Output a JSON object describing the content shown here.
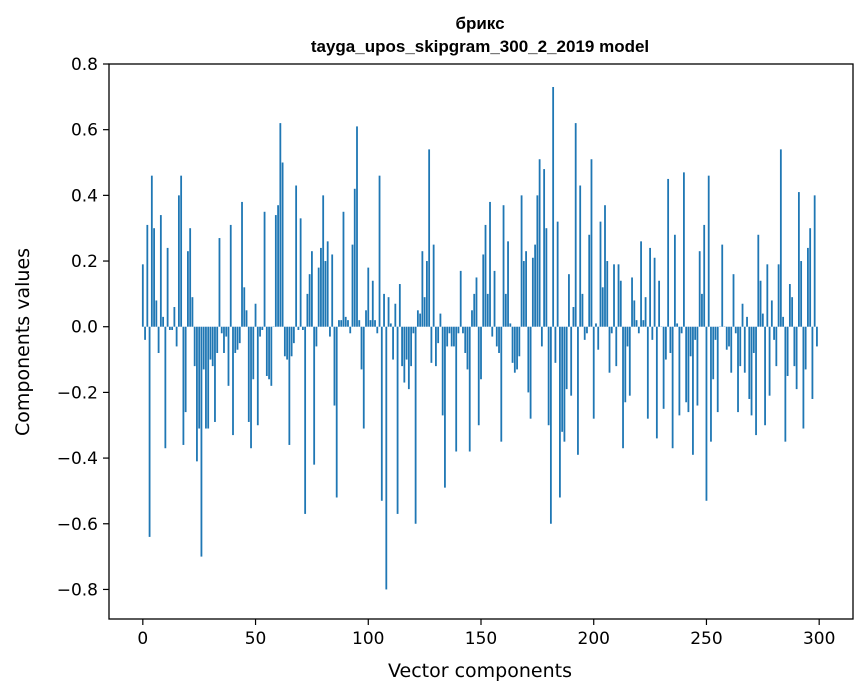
{
  "chart_data": {
    "type": "bar",
    "title": "брикс",
    "subtitle": "tayga_upos_skipgram_300_2_2019 model",
    "xlabel": "Vector components",
    "ylabel": "Components values",
    "xlim": [
      -15,
      315
    ],
    "ylim": [
      -0.89,
      0.8
    ],
    "xticks": [
      0,
      50,
      100,
      150,
      200,
      250,
      300
    ],
    "yticks": [
      0.8,
      0.6,
      0.4,
      0.2,
      0.0,
      -0.2,
      -0.4,
      -0.6,
      -0.8
    ],
    "ytick_labels": [
      "0.8",
      "0.6",
      "0.4",
      "0.2",
      "0.0",
      "−0.2",
      "−0.4",
      "−0.6",
      "−0.8"
    ],
    "bar_color": "#1f77b4",
    "values": [
      0.19,
      -0.04,
      0.31,
      -0.64,
      0.46,
      0.3,
      0.08,
      -0.08,
      0.34,
      0.03,
      -0.37,
      0.24,
      -0.01,
      -0.01,
      0.06,
      -0.06,
      0.4,
      0.46,
      -0.36,
      -0.26,
      0.23,
      0.3,
      0.09,
      -0.12,
      -0.41,
      -0.31,
      -0.7,
      -0.13,
      -0.31,
      -0.31,
      -0.1,
      -0.12,
      -0.29,
      -0.08,
      0.27,
      -0.02,
      -0.08,
      -0.03,
      -0.18,
      0.31,
      -0.33,
      -0.08,
      -0.07,
      -0.05,
      0.38,
      0.12,
      0.05,
      -0.29,
      -0.37,
      -0.16,
      0.07,
      -0.3,
      -0.03,
      -0.01,
      0.35,
      -0.15,
      -0.16,
      -0.18,
      0.0,
      0.34,
      0.37,
      0.62,
      0.5,
      -0.09,
      -0.1,
      -0.36,
      -0.09,
      -0.05,
      0.43,
      -0.01,
      0.33,
      -0.01,
      -0.57,
      0.1,
      0.16,
      0.23,
      -0.42,
      -0.06,
      0.18,
      0.24,
      0.4,
      0.2,
      0.26,
      -0.03,
      0.22,
      -0.24,
      -0.52,
      0.02,
      0.02,
      0.35,
      0.03,
      0.02,
      -0.02,
      0.25,
      0.42,
      0.61,
      0.02,
      -0.13,
      -0.31,
      0.05,
      0.18,
      0.02,
      0.14,
      0.02,
      -0.02,
      0.46,
      -0.53,
      0.1,
      -0.8,
      0.09,
      0.01,
      -0.1,
      0.07,
      -0.57,
      0.13,
      -0.12,
      -0.17,
      -0.1,
      -0.19,
      -0.12,
      -0.02,
      -0.6,
      0.05,
      0.04,
      0.23,
      0.09,
      0.2,
      0.54,
      -0.11,
      0.25,
      -0.12,
      -0.05,
      0.04,
      -0.27,
      -0.49,
      -0.06,
      -0.02,
      -0.06,
      -0.06,
      -0.38,
      -0.02,
      0.17,
      -0.02,
      -0.08,
      -0.13,
      -0.38,
      0.05,
      0.1,
      0.15,
      -0.3,
      -0.16,
      0.22,
      0.31,
      0.1,
      0.38,
      -0.03,
      0.17,
      -0.06,
      -0.08,
      -0.35,
      0.37,
      0.1,
      0.26,
      0.01,
      -0.11,
      -0.14,
      -0.13,
      -0.09,
      0.4,
      0.2,
      0.23,
      -0.2,
      -0.28,
      0.21,
      0.25,
      0.4,
      0.51,
      -0.06,
      0.48,
      0.3,
      -0.3,
      -0.6,
      0.73,
      -0.11,
      0.32,
      -0.52,
      -0.32,
      -0.35,
      -0.19,
      0.16,
      -0.21,
      0.06,
      0.62,
      -0.39,
      0.43,
      0.1,
      -0.04,
      -0.02,
      0.28,
      0.51,
      -0.28,
      0.01,
      -0.07,
      0.32,
      0.12,
      0.37,
      0.2,
      -0.14,
      -0.02,
      0.19,
      -0.12,
      0.19,
      0.14,
      -0.37,
      -0.23,
      -0.06,
      -0.21,
      0.15,
      0.08,
      0.02,
      -0.02,
      0.26,
      0.02,
      0.09,
      -0.28,
      0.24,
      -0.04,
      0.21,
      -0.34,
      0.14,
      0.0,
      -0.25,
      -0.1,
      0.45,
      -0.08,
      -0.37,
      0.28,
      0.01,
      -0.27,
      -0.02,
      0.47,
      -0.23,
      -0.26,
      -0.09,
      -0.39,
      -0.04,
      -0.24,
      0.23,
      0.1,
      0.31,
      -0.53,
      0.46,
      -0.35,
      -0.16,
      -0.04,
      -0.26,
      0.0,
      0.25,
      0.0,
      -0.07,
      -0.06,
      -0.14,
      0.16,
      -0.02,
      -0.26,
      -0.12,
      0.07,
      -0.14,
      0.03,
      -0.22,
      -0.27,
      -0.08,
      -0.33,
      0.28,
      0.14,
      0.04,
      -0.3,
      0.19,
      -0.21,
      0.08,
      -0.04,
      -0.12,
      0.19,
      0.54,
      0.03,
      -0.35,
      -0.15,
      0.13,
      0.09,
      -0.12,
      -0.19,
      0.41,
      0.2,
      -0.31,
      -0.13,
      0.24,
      0.3,
      -0.22,
      0.4,
      -0.06
    ]
  }
}
